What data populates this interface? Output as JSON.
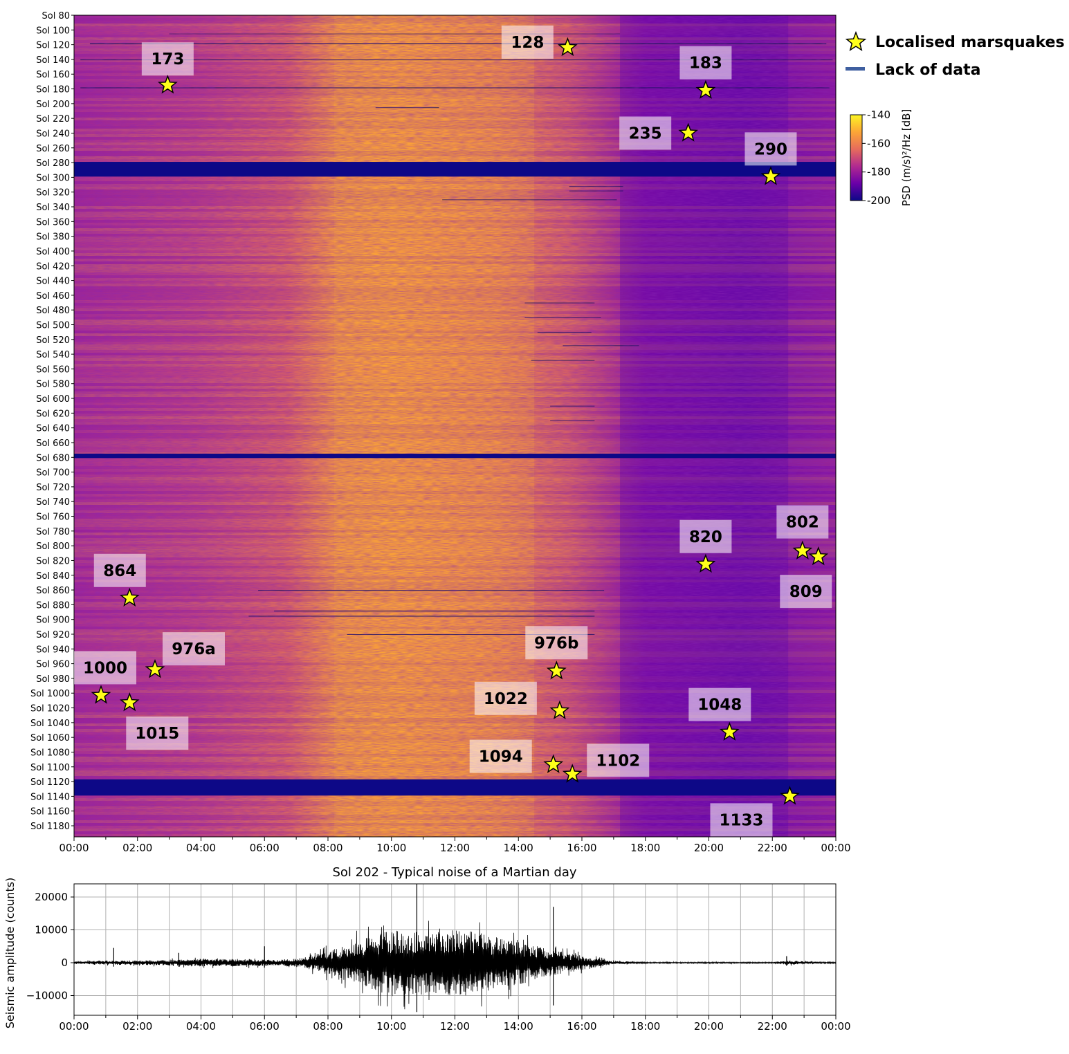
{
  "legend": {
    "localised_marsquakes": "Localised marsquakes",
    "lack_of_data": "Lack of data",
    "star_color": "#ffff1a",
    "gap_color": "#3f5fa0"
  },
  "colorbar": {
    "label": "PSD (m/s)²/Hz [dB]",
    "ticks": [
      "-140",
      "-160",
      "-180",
      "-200"
    ],
    "colors": [
      "#fcf524",
      "#fca636",
      "#e66c5c",
      "#b12a90",
      "#6a00a8",
      "#0d0887"
    ]
  },
  "chart_data": [
    {
      "type": "heatmap",
      "title": "",
      "xlabel": "",
      "ylabel": "",
      "x_ticks": [
        "00:00",
        "02:00",
        "04:00",
        "06:00",
        "08:00",
        "10:00",
        "12:00",
        "14:00",
        "16:00",
        "18:00",
        "20:00",
        "22:00",
        "00:00"
      ],
      "y_ticks": [
        "Sol 80",
        "Sol 100",
        "Sol 120",
        "Sol 140",
        "Sol 160",
        "Sol 180",
        "Sol 200",
        "Sol 220",
        "Sol 240",
        "Sol 260",
        "Sol 280",
        "Sol 300",
        "Sol 320",
        "Sol 340",
        "Sol 360",
        "Sol 380",
        "Sol 400",
        "Sol 420",
        "Sol 440",
        "Sol 460",
        "Sol 480",
        "Sol 500",
        "Sol 520",
        "Sol 540",
        "Sol 560",
        "Sol 580",
        "Sol 600",
        "Sol 620",
        "Sol 640",
        "Sol 660",
        "Sol 680",
        "Sol 700",
        "Sol 720",
        "Sol 740",
        "Sol 760",
        "Sol 780",
        "Sol 800",
        "Sol 820",
        "Sol 840",
        "Sol 860",
        "Sol 880",
        "Sol 900",
        "Sol 920",
        "Sol 940",
        "Sol 960",
        "Sol 980",
        "Sol 1000",
        "Sol 1020",
        "Sol 1040",
        "Sol 1060",
        "Sol 1080",
        "Sol 1100",
        "Sol 1120",
        "Sol 1140",
        "Sol 1160",
        "Sol 1180"
      ],
      "sol_range": [
        80,
        1195
      ],
      "time_range_hours": [
        0,
        24
      ],
      "color_range_db": [
        -200,
        -140
      ],
      "data_gaps_sols": [
        [
          279,
          299
        ],
        [
          675,
          681
        ],
        [
          1117,
          1139
        ]
      ],
      "marsquakes": [
        {
          "label": "128",
          "sol": 124,
          "hour": 15.55
        },
        {
          "label": "173",
          "sol": 175,
          "hour": 2.95
        },
        {
          "label": "183",
          "sol": 182,
          "hour": 19.9
        },
        {
          "label": "235",
          "sol": 240,
          "hour": 19.35
        },
        {
          "label": "290",
          "sol": 299,
          "hour": 21.95
        },
        {
          "label": "802",
          "sol": 807,
          "hour": 22.95
        },
        {
          "label": "809",
          "sol": 815,
          "hour": 23.45
        },
        {
          "label": "820",
          "sol": 825,
          "hour": 19.9
        },
        {
          "label": "864",
          "sol": 871,
          "hour": 1.75
        },
        {
          "label": "976a",
          "sol": 968,
          "hour": 2.55
        },
        {
          "label": "1000",
          "sol": 1003,
          "hour": 0.85
        },
        {
          "label": "1015",
          "sol": 1013,
          "hour": 1.75
        },
        {
          "label": "976b",
          "sol": 970,
          "hour": 15.2
        },
        {
          "label": "1022",
          "sol": 1024,
          "hour": 15.3
        },
        {
          "label": "1048",
          "sol": 1053,
          "hour": 20.65
        },
        {
          "label": "1094",
          "sol": 1097,
          "hour": 15.1
        },
        {
          "label": "1102",
          "sol": 1110,
          "hour": 15.7
        },
        {
          "label": "1133",
          "sol": 1140,
          "hour": 22.55
        }
      ]
    },
    {
      "type": "line",
      "title": "Sol 202 - Typical noise of a Martian day",
      "xlabel": "",
      "ylabel": "Seismic amplitude (counts)",
      "x_ticks": [
        "00:00",
        "02:00",
        "04:00",
        "06:00",
        "08:00",
        "10:00",
        "12:00",
        "14:00",
        "16:00",
        "18:00",
        "20:00",
        "22:00",
        "00:00"
      ],
      "y_ticks": [
        "20000",
        "10000",
        "0",
        "−10000"
      ],
      "xlim_hours": [
        0,
        24
      ],
      "ylim": [
        -16000,
        24000
      ],
      "grid": true,
      "envelope": [
        {
          "hour": 0.0,
          "amp": 300
        },
        {
          "hour": 1.0,
          "amp": 500
        },
        {
          "hour": 2.5,
          "amp": 600
        },
        {
          "hour": 4.0,
          "amp": 900
        },
        {
          "hour": 5.5,
          "amp": 900
        },
        {
          "hour": 6.5,
          "amp": 700
        },
        {
          "hour": 7.2,
          "amp": 1200
        },
        {
          "hour": 7.8,
          "amp": 2500
        },
        {
          "hour": 8.5,
          "amp": 4200
        },
        {
          "hour": 9.3,
          "amp": 6500
        },
        {
          "hour": 10.0,
          "amp": 8000
        },
        {
          "hour": 11.0,
          "amp": 7500
        },
        {
          "hour": 12.0,
          "amp": 8200
        },
        {
          "hour": 13.0,
          "amp": 7000
        },
        {
          "hour": 14.0,
          "amp": 5500
        },
        {
          "hour": 14.8,
          "amp": 3500
        },
        {
          "hour": 15.5,
          "amp": 2500
        },
        {
          "hour": 16.3,
          "amp": 1300
        },
        {
          "hour": 17.0,
          "amp": 400
        },
        {
          "hour": 18.0,
          "amp": 150
        },
        {
          "hour": 22.0,
          "amp": 150
        },
        {
          "hour": 22.5,
          "amp": 500
        },
        {
          "hour": 23.5,
          "amp": 200
        },
        {
          "hour": 24.0,
          "amp": 150
        }
      ],
      "spikes": [
        {
          "hour": 10.8,
          "max": 24000,
          "min": -15000
        },
        {
          "hour": 15.1,
          "max": 17000,
          "min": -13000
        },
        {
          "hour": 1.25,
          "max": 4500,
          "min": -1200
        },
        {
          "hour": 3.3,
          "max": 3000,
          "min": -1200
        },
        {
          "hour": 6.0,
          "max": 5000,
          "min": -1500
        },
        {
          "hour": 22.45,
          "max": 2000,
          "min": -900
        }
      ]
    }
  ]
}
